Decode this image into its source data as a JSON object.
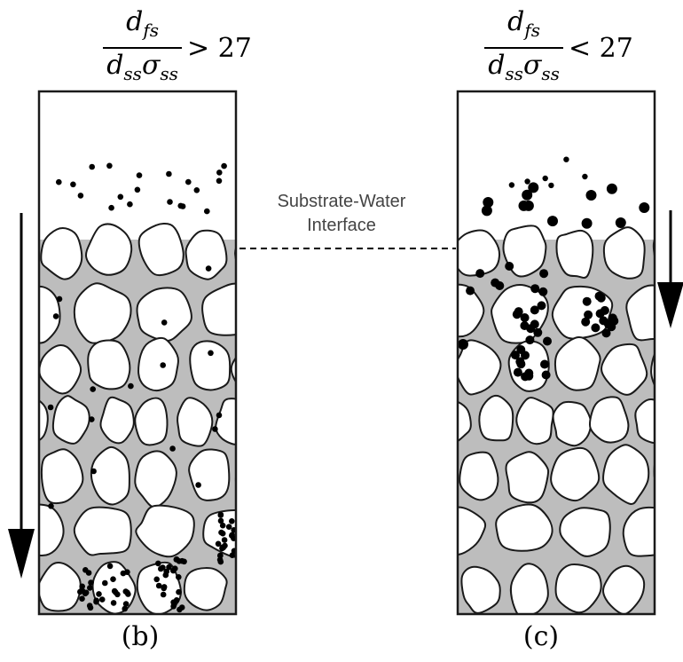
{
  "panels": [
    {
      "id": "b",
      "label": "(b)",
      "formula": {
        "num_main": "d",
        "num_sub": "fs",
        "den_main1": "d",
        "den_sub1": "ss",
        "den_main2": "σ",
        "den_sub2": "ss",
        "relation": "> 27"
      }
    },
    {
      "id": "c",
      "label": "(c)",
      "formula": {
        "num_main": "d",
        "num_sub": "fs",
        "den_main1": "d",
        "den_sub1": "ss",
        "den_main2": "σ",
        "den_sub2": "ss",
        "relation": "< 27"
      }
    }
  ],
  "interface": {
    "line1": "Substrate-Water",
    "line2": "Interface"
  },
  "colors": {
    "pore_fill": "#bdbdbd",
    "grain_fill": "#ffffff",
    "outline": "#1a1a1a",
    "particle": "#000000"
  }
}
